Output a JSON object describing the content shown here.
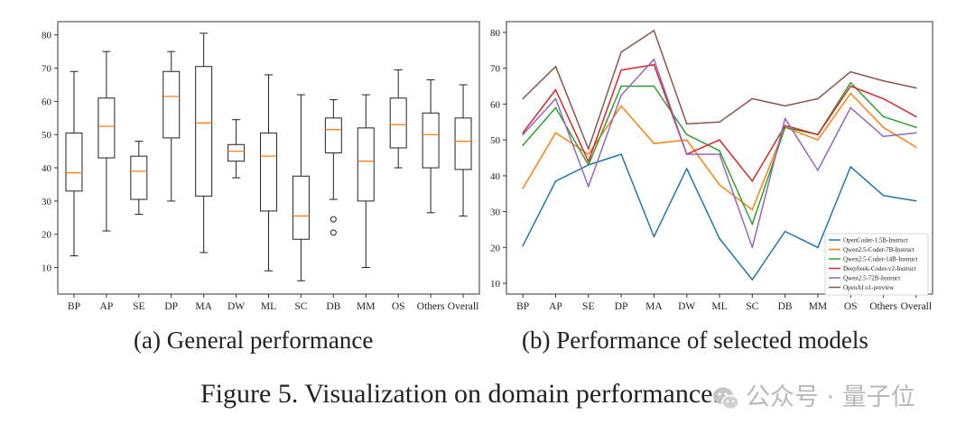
{
  "figure": {
    "caption": "Figure 5.  Visualization on domain performance.",
    "watermark": "公众号 · 量子位"
  },
  "chart_data": [
    {
      "type": "box",
      "panel_caption": "(a) General performance",
      "categories": [
        "BP",
        "AP",
        "SE",
        "DP",
        "MA",
        "DW",
        "ML",
        "SC",
        "DB",
        "MM",
        "OS",
        "Others",
        "Overall"
      ],
      "ylim": [
        2,
        84
      ],
      "yticks": [
        10,
        20,
        30,
        40,
        50,
        60,
        70,
        80
      ],
      "grid": false,
      "boxes": [
        {
          "whisker_low": 13.5,
          "q1": 33,
          "median": 38.5,
          "q3": 50.5,
          "whisker_high": 69,
          "outliers": []
        },
        {
          "whisker_low": 21,
          "q1": 43,
          "median": 52.5,
          "q3": 61,
          "whisker_high": 75,
          "outliers": []
        },
        {
          "whisker_low": 26,
          "q1": 30.5,
          "median": 39,
          "q3": 43.5,
          "whisker_high": 48,
          "outliers": []
        },
        {
          "whisker_low": 30,
          "q1": 49,
          "median": 61.5,
          "q3": 69,
          "whisker_high": 75,
          "outliers": []
        },
        {
          "whisker_low": 14.5,
          "q1": 31.5,
          "median": 53.5,
          "q3": 70.5,
          "whisker_high": 80.5,
          "outliers": []
        },
        {
          "whisker_low": 37,
          "q1": 42,
          "median": 45,
          "q3": 47,
          "whisker_high": 54.5,
          "outliers": []
        },
        {
          "whisker_low": 9,
          "q1": 27,
          "median": 43.5,
          "q3": 50.5,
          "whisker_high": 68,
          "outliers": []
        },
        {
          "whisker_low": 6,
          "q1": 18.5,
          "median": 25.5,
          "q3": 37.5,
          "whisker_high": 62,
          "outliers": []
        },
        {
          "whisker_low": 30.5,
          "q1": 44.5,
          "median": 51.5,
          "q3": 55,
          "whisker_high": 60.5,
          "outliers": [
            24.5,
            20.5
          ]
        },
        {
          "whisker_low": 10,
          "q1": 30,
          "median": 42,
          "q3": 52,
          "whisker_high": 62,
          "outliers": []
        },
        {
          "whisker_low": 40,
          "q1": 46,
          "median": 53,
          "q3": 61,
          "whisker_high": 69.5,
          "outliers": []
        },
        {
          "whisker_low": 26.5,
          "q1": 40,
          "median": 50,
          "q3": 56.5,
          "whisker_high": 66.5,
          "outliers": []
        },
        {
          "whisker_low": 25.5,
          "q1": 39.5,
          "median": 48,
          "q3": 55,
          "whisker_high": 65,
          "outliers": []
        }
      ]
    },
    {
      "type": "line",
      "panel_caption": "(b) Performance of selected models",
      "categories": [
        "BP",
        "AP",
        "SE",
        "DP",
        "MA",
        "DW",
        "ML",
        "SC",
        "DB",
        "MM",
        "OS",
        "Others",
        "Overall"
      ],
      "ylim": [
        7,
        83
      ],
      "yticks": [
        10,
        20,
        30,
        40,
        50,
        60,
        70,
        80
      ],
      "grid": false,
      "legend_position": "lower-right",
      "series": [
        {
          "name": "OpenCoder-1.5B-Instruct",
          "color": "#1f77b4",
          "values": [
            20.5,
            38.5,
            43,
            46,
            23,
            42,
            22.5,
            11,
            24.5,
            20,
            42.5,
            34.5,
            33
          ]
        },
        {
          "name": "Qwen2.5-Coder-7B-Instruct",
          "color": "#ff7f0e",
          "values": [
            36.5,
            52,
            46,
            59.5,
            49,
            50,
            37.5,
            30.5,
            53.5,
            50,
            63,
            53.5,
            48
          ]
        },
        {
          "name": "Qwen2.5-Coder-14B-Instruct",
          "color": "#2ca02c",
          "values": [
            48.5,
            59,
            43,
            65,
            65,
            51.5,
            47,
            26.5,
            53.5,
            51.5,
            66,
            56.5,
            53.5
          ]
        },
        {
          "name": "DeepSeek-Coder-v2-Instruct",
          "color": "#d62728",
          "values": [
            52,
            64,
            44,
            69.5,
            71,
            46,
            50,
            38.5,
            54,
            51.5,
            65,
            61.5,
            56.5
          ]
        },
        {
          "name": "Qwen2.5-72B-Instruct",
          "color": "#9467bd",
          "values": [
            51.5,
            61.5,
            37,
            62.5,
            72.5,
            46,
            46,
            20,
            56,
            41.5,
            59,
            51,
            52
          ]
        },
        {
          "name": "OpenAI o1-preview",
          "color": "#8c564b",
          "values": [
            61.5,
            70.5,
            47.5,
            74.5,
            80.5,
            54.5,
            55,
            61.5,
            59.5,
            61.5,
            69,
            66.5,
            64.5
          ]
        }
      ]
    }
  ]
}
